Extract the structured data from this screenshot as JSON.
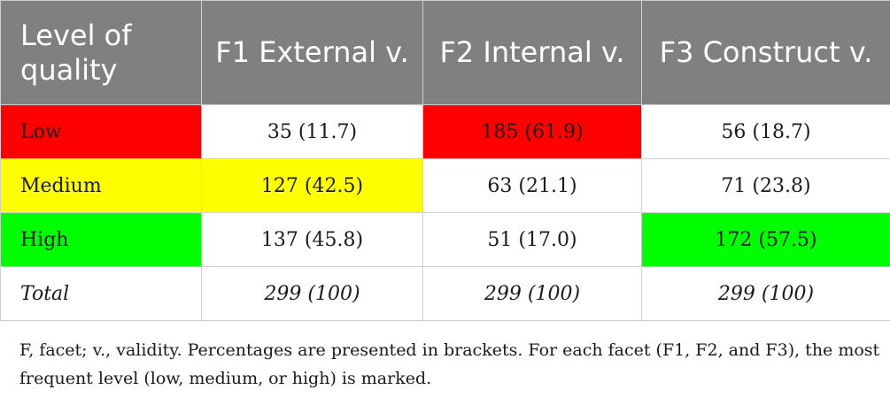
{
  "table": {
    "headers": [
      "Level of quality",
      "F1 External v.",
      "F2 Internal v.",
      "F3 Construct v."
    ],
    "rows": [
      {
        "label": "Low",
        "cells": [
          "35 (11.7)",
          "185 (61.9)",
          "56 (18.7)"
        ]
      },
      {
        "label": "Medium",
        "cells": [
          "127 (42.5)",
          "63 (21.1)",
          "71 (23.8)"
        ]
      },
      {
        "label": "High",
        "cells": [
          "137 (45.8)",
          "51 (17.0)",
          "172 (57.5)"
        ]
      },
      {
        "label": "Total",
        "cells": [
          "299 (100)",
          "299 (100)",
          "299 (100)"
        ]
      }
    ]
  },
  "highlight_colors": {
    "low": "#ff0000",
    "medium": "#ffff00",
    "high": "#00ff00",
    "header_bg": "#808080"
  },
  "footnote": "F, facet; v., validity. Percentages are presented in brackets. For each facet (F1, F2, and F3), the most frequent level (low, medium, or high) is marked."
}
